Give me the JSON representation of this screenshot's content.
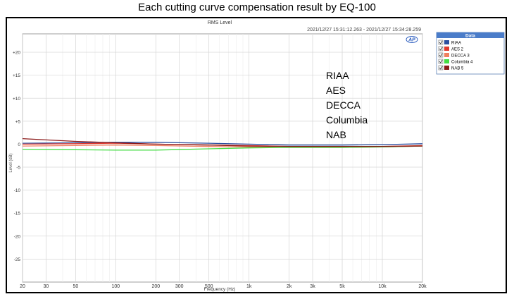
{
  "title": "Each cutting curve  compensation result by EQ-100",
  "chart_data": {
    "type": "line",
    "title": "RMS Level",
    "timestamp": "2021/12/27 15:31:12.263 - 2021/12/27 15:34:28.259",
    "logo": "AP",
    "xlabel": "Frequency (Hz)",
    "ylabel": "Level (dB)",
    "x_scale": "log",
    "xlim": [
      20,
      20000
    ],
    "ylim": [
      -30,
      24
    ],
    "grid": true,
    "x_ticks": [
      {
        "v": 20,
        "label": "20"
      },
      {
        "v": 30,
        "label": "30"
      },
      {
        "v": 50,
        "label": "50"
      },
      {
        "v": 100,
        "label": "100"
      },
      {
        "v": 200,
        "label": "200"
      },
      {
        "v": 300,
        "label": "300"
      },
      {
        "v": 500,
        "label": "500"
      },
      {
        "v": 1000,
        "label": "1k"
      },
      {
        "v": 2000,
        "label": "2k"
      },
      {
        "v": 3000,
        "label": "3k"
      },
      {
        "v": 5000,
        "label": "5k"
      },
      {
        "v": 10000,
        "label": "10k"
      },
      {
        "v": 20000,
        "label": "20k"
      }
    ],
    "y_ticks": [
      {
        "v": 20,
        "label": "+20"
      },
      {
        "v": 15,
        "label": "+15"
      },
      {
        "v": 10,
        "label": "+10"
      },
      {
        "v": 5,
        "label": "+5"
      },
      {
        "v": 0,
        "label": "0"
      },
      {
        "v": -5,
        "label": "-5"
      },
      {
        "v": -10,
        "label": "-10"
      },
      {
        "v": -15,
        "label": "-15"
      },
      {
        "v": -20,
        "label": "-20"
      },
      {
        "v": -25,
        "label": "-25"
      }
    ],
    "legend": {
      "title": "Data",
      "position": "outside-right",
      "entries": [
        "RIAA",
        "AES 2",
        "DECCA 3",
        "Columbia 4",
        "NAB 5"
      ]
    },
    "annotation": [
      "RIAA",
      "AES",
      "DECCA",
      "Columbia",
      "NAB"
    ],
    "series": [
      {
        "name": "RIAA",
        "color": "#2b4fa0",
        "x": [
          20,
          50,
          100,
          200,
          500,
          1000,
          2000,
          5000,
          10000,
          20000
        ],
        "y": [
          0.2,
          0.3,
          0.4,
          0.4,
          0.2,
          0.0,
          -0.2,
          -0.2,
          -0.1,
          0.1
        ]
      },
      {
        "name": "AES 2",
        "color": "#e03a2f",
        "x": [
          20,
          50,
          100,
          200,
          500,
          1000,
          2000,
          5000,
          10000,
          20000
        ],
        "y": [
          0.0,
          0.1,
          0.2,
          0.0,
          -0.2,
          -0.3,
          -0.5,
          -0.6,
          -0.5,
          -0.3
        ]
      },
      {
        "name": "DECCA 3",
        "color": "#f08060",
        "x": [
          20,
          50,
          100,
          200,
          500,
          1000,
          2000,
          5000,
          10000,
          20000
        ],
        "y": [
          -0.4,
          -0.3,
          -0.2,
          -0.3,
          -0.5,
          -0.6,
          -0.7,
          -0.7,
          -0.6,
          -0.4
        ]
      },
      {
        "name": "Columbia 4",
        "color": "#44dd44",
        "x": [
          20,
          50,
          100,
          200,
          500,
          1000,
          2000,
          5000,
          10000,
          20000
        ],
        "y": [
          -1.1,
          -1.2,
          -1.3,
          -1.3,
          -1.0,
          -0.8,
          -0.7,
          -0.7,
          -0.6,
          -0.4
        ]
      },
      {
        "name": "NAB 5",
        "color": "#8b1a1a",
        "x": [
          20,
          50,
          100,
          200,
          500,
          1000,
          2000,
          5000,
          10000,
          20000
        ],
        "y": [
          1.2,
          0.6,
          0.3,
          0.0,
          -0.2,
          -0.4,
          -0.5,
          -0.5,
          -0.5,
          -0.4
        ]
      }
    ]
  }
}
